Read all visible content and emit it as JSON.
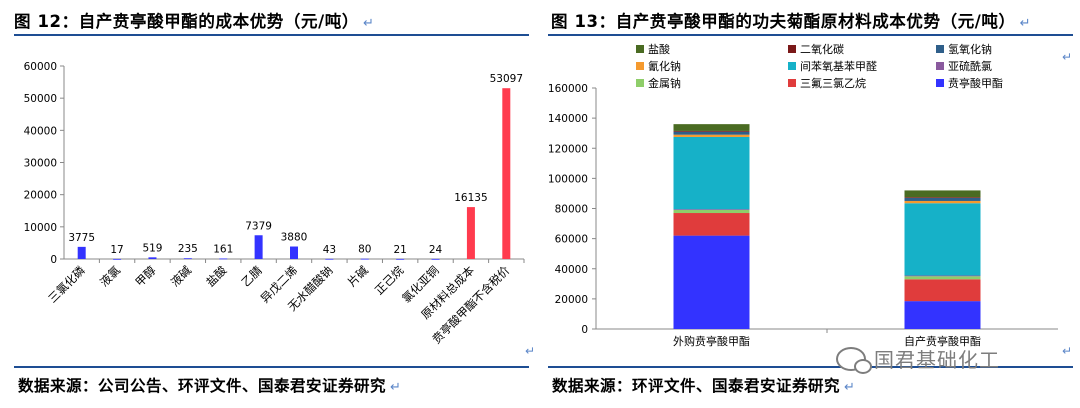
{
  "left": {
    "title": "图 12：自产贲亭酸甲酯的成本优势（元/吨）",
    "source": "数据来源：公司公告、环评文件、国泰君安证券研究"
  },
  "right": {
    "title": "图 13：自产贲亭酸甲酯的功夫菊酯原材料成本优势（元/吨）",
    "source": "数据来源：环评文件、国泰君安证券研究"
  },
  "return_glyph": "↵",
  "watermark": {
    "text": "国君基础化工"
  },
  "chart_data": [
    {
      "type": "bar",
      "categories": [
        "三氯化磷",
        "液氯",
        "甲醇",
        "液碱",
        "盐酸",
        "乙腈",
        "异戊二烯",
        "无水醋酸钠",
        "片碱",
        "正己烷",
        "氯化亚铜",
        "原材料总成本",
        "贲亭酸甲酯不含税价"
      ],
      "values": [
        3775,
        17,
        519,
        235,
        161,
        7379,
        3880,
        43,
        80,
        21,
        24,
        16135,
        53097
      ],
      "bar_colors": [
        "#3333ff",
        "#3333ff",
        "#3333ff",
        "#3333ff",
        "#3333ff",
        "#3333ff",
        "#3333ff",
        "#3333ff",
        "#3333ff",
        "#3333ff",
        "#3333ff",
        "#ff3b4e",
        "#ff3b4e"
      ],
      "yticks": [
        0,
        10000,
        20000,
        30000,
        40000,
        50000,
        60000
      ],
      "ylim": [
        0,
        60000
      ],
      "grid": false,
      "legend": "none"
    },
    {
      "type": "bar",
      "stacked": true,
      "categories": [
        "外购贲亭酸甲酯",
        "自产贲亭酸甲酯"
      ],
      "series": [
        {
          "name": "贲亭酸甲酯",
          "color": "#3333ff",
          "values": [
            62000,
            18500
          ]
        },
        {
          "name": "三氟三氯乙烷",
          "color": "#e03c3c",
          "values": [
            15000,
            14500
          ]
        },
        {
          "name": "金属钠",
          "color": "#8fce6a",
          "values": [
            2000,
            2000
          ]
        },
        {
          "name": "亚硫酰氯",
          "color": "#8a5a9e",
          "values": [
            500,
            500
          ]
        },
        {
          "name": "间苯氧基苯甲醛",
          "color": "#16b1c8",
          "values": [
            48000,
            48000
          ]
        },
        {
          "name": "氰化钠",
          "color": "#f59a2f",
          "values": [
            1500,
            1500
          ]
        },
        {
          "name": "氢氧化钠",
          "color": "#2f5f8a",
          "values": [
            2000,
            2000
          ]
        },
        {
          "name": "二氧化碳",
          "color": "#7a1818",
          "values": [
            500,
            500
          ]
        },
        {
          "name": "盐酸",
          "color": "#4a6b22",
          "values": [
            4500,
            4500
          ]
        }
      ],
      "legend_order": [
        "盐酸",
        "二氧化碳",
        "氢氧化钠",
        "氰化钠",
        "间苯氧基苯甲醛",
        "亚硫酰氯",
        "金属钠",
        "三氟三氯乙烷",
        "贲亭酸甲酯"
      ],
      "yticks": [
        0,
        20000,
        40000,
        60000,
        80000,
        100000,
        120000,
        140000,
        160000
      ],
      "ylim": [
        0,
        160000
      ],
      "grid": false,
      "legend": "top"
    }
  ]
}
